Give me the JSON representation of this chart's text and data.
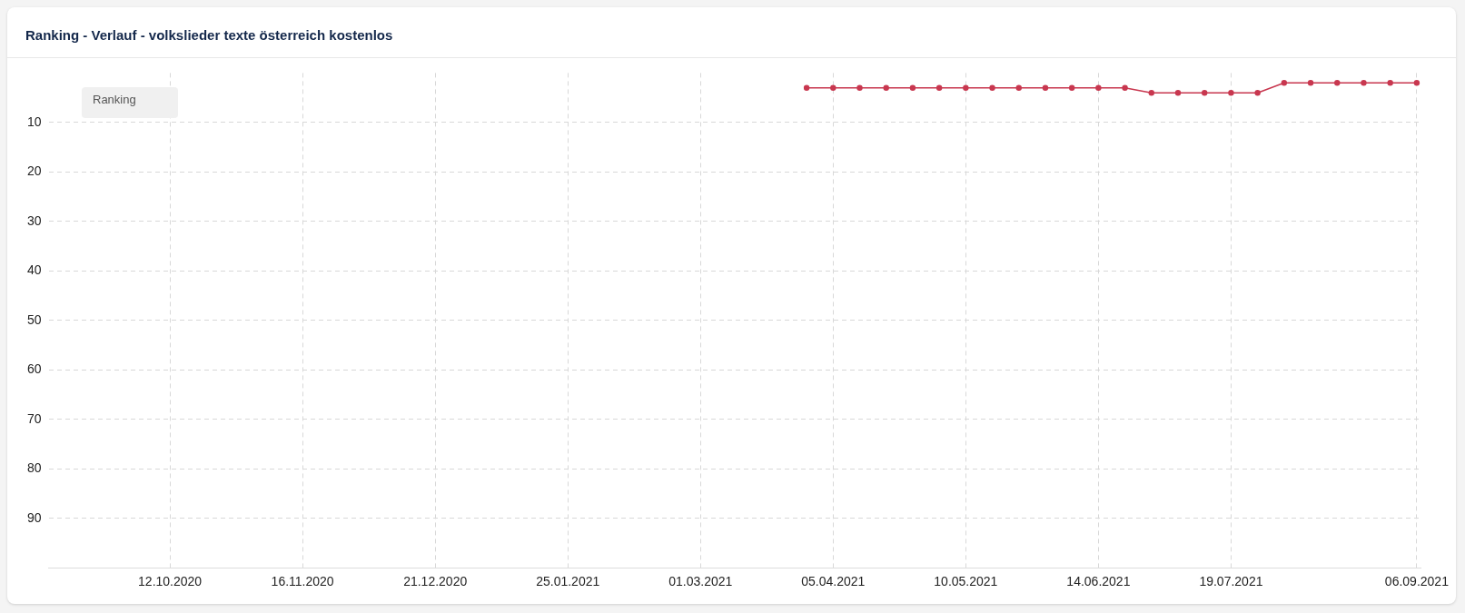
{
  "chart_data": {
    "type": "line",
    "title": "Ranking - Verlauf - volkslieder texte österreich kostenlos",
    "legend_title": "Ranking",
    "x": [
      "2021-03-29",
      "2021-04-05",
      "2021-04-12",
      "2021-04-19",
      "2021-04-26",
      "2021-05-03",
      "2021-05-10",
      "2021-05-17",
      "2021-05-24",
      "2021-05-31",
      "2021-06-07",
      "2021-06-14",
      "2021-06-21",
      "2021-06-28",
      "2021-07-05",
      "2021-07-12",
      "2021-07-19",
      "2021-07-26",
      "2021-08-02",
      "2021-08-09",
      "2021-08-16",
      "2021-08-23",
      "2021-08-30",
      "2021-09-06"
    ],
    "series": [
      {
        "color": "#c8374f",
        "values": [
          3,
          3,
          3,
          3,
          3,
          3,
          3,
          3,
          3,
          3,
          3,
          3,
          3,
          4,
          4,
          4,
          4,
          4,
          2,
          2,
          2,
          2,
          2,
          2
        ]
      }
    ],
    "xlim": [
      "2020-09-10",
      "2021-09-07"
    ],
    "xticks": [
      {
        "value": "2020-10-12",
        "label": "12.10.2020"
      },
      {
        "value": "2020-11-16",
        "label": "16.11.2020"
      },
      {
        "value": "2020-12-21",
        "label": "21.12.2020"
      },
      {
        "value": "2021-01-25",
        "label": "25.01.2021"
      },
      {
        "value": "2021-03-01",
        "label": "01.03.2021"
      },
      {
        "value": "2021-04-05",
        "label": "05.04.2021"
      },
      {
        "value": "2021-05-10",
        "label": "10.05.2021"
      },
      {
        "value": "2021-06-14",
        "label": "14.06.2021"
      },
      {
        "value": "2021-07-19",
        "label": "19.07.2021"
      },
      {
        "value": "2021-09-06",
        "label": "06.09.2021"
      }
    ],
    "ylim": [
      100,
      0
    ],
    "yticks": [
      10,
      20,
      30,
      40,
      50,
      60,
      70,
      80,
      90
    ],
    "grid": true,
    "marker": "circle",
    "line_style": "solid"
  }
}
